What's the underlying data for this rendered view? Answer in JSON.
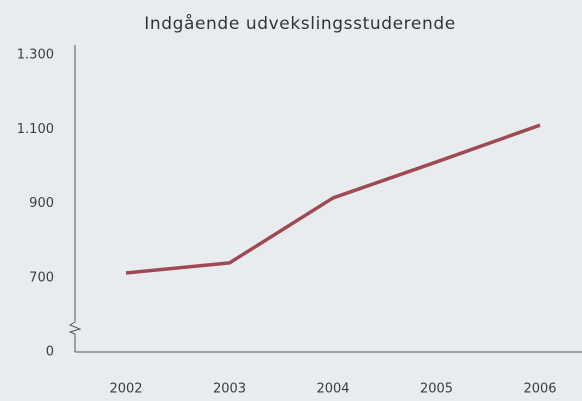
{
  "chart_data": {
    "type": "line",
    "title": "Indgående udvekslingsstuderende",
    "categories": [
      "2002",
      "2003",
      "2004",
      "2005",
      "2006"
    ],
    "series": [
      {
        "name": "Indgående udvekslingsstuderende",
        "color": "#9f4a52",
        "values": [
          713,
          740,
          915,
          1012,
          1111
        ]
      }
    ],
    "ylim": [
      0,
      1300
    ],
    "axis_break": [
      0,
      500
    ],
    "yticks": [
      {
        "value": 0,
        "label": "0"
      },
      {
        "value": 700,
        "label": "700"
      },
      {
        "value": 900,
        "label": "900"
      },
      {
        "value": 1100,
        "label": "1.100"
      },
      {
        "value": 1300,
        "label": "1.300"
      }
    ],
    "grid": false
  }
}
